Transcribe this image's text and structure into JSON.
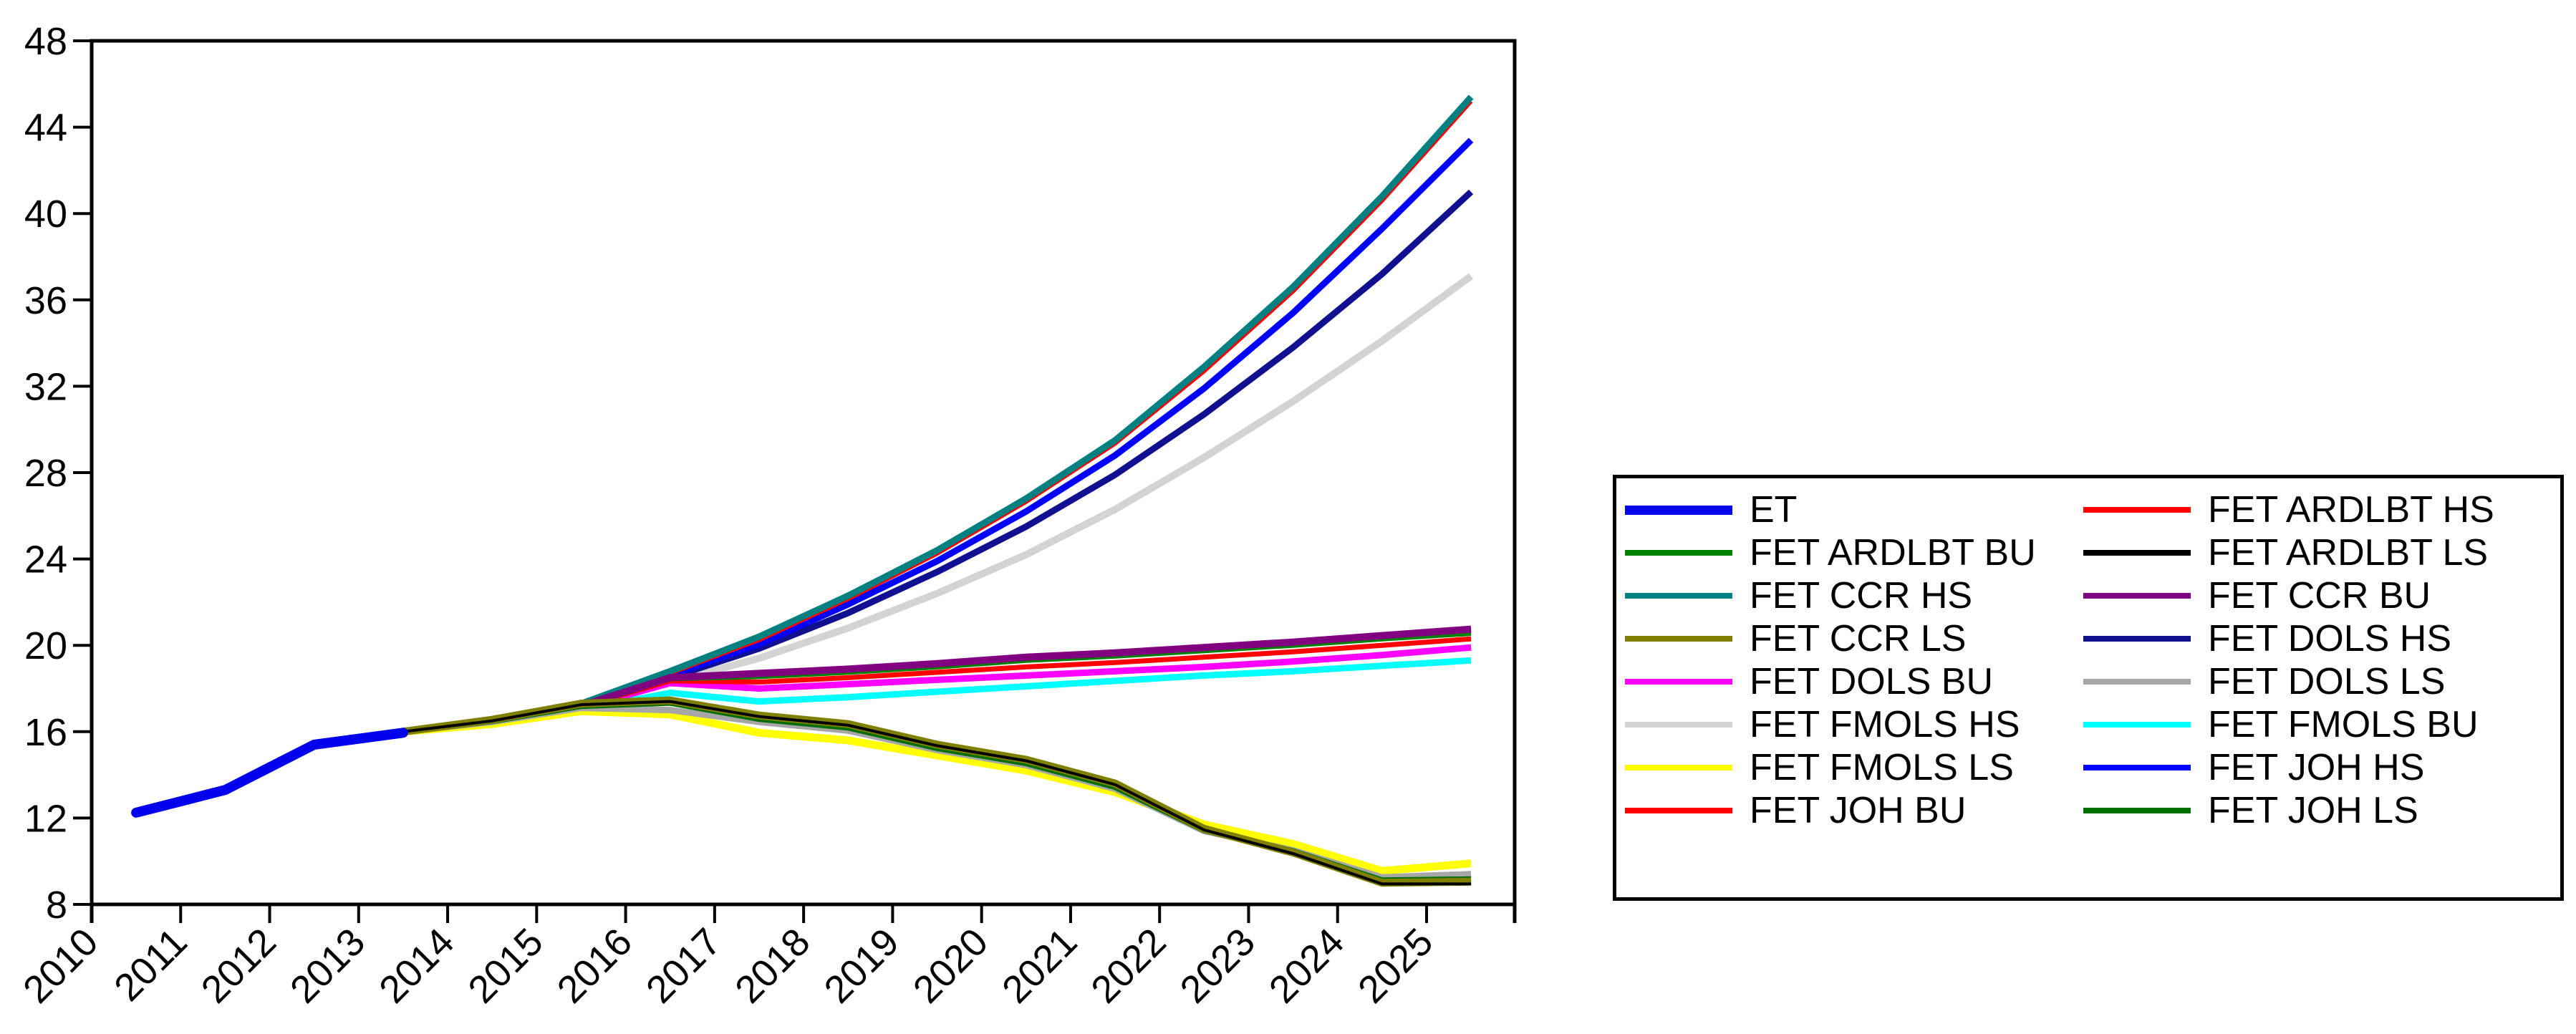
{
  "chart_data": {
    "type": "line",
    "title": "",
    "xlabel": "",
    "ylabel": "",
    "grid": false,
    "legend_position": "right-box",
    "x": [
      2010,
      2011,
      2012,
      2013,
      2014,
      2015,
      2016,
      2017,
      2018,
      2019,
      2020,
      2021,
      2022,
      2023,
      2024,
      2025
    ],
    "x_tick_labels": [
      "2010",
      "2011",
      "2012",
      "2013",
      "2014",
      "2015",
      "2016",
      "2017",
      "2018",
      "2019",
      "2020",
      "2021",
      "2022",
      "2023",
      "2024",
      "2025"
    ],
    "ylim": [
      8,
      48
    ],
    "y_ticks": [
      8,
      12,
      16,
      20,
      24,
      28,
      32,
      36,
      40,
      44,
      48
    ],
    "series": [
      {
        "name": "FET FMOLS HS",
        "color": "#D3D3D3",
        "width": 10,
        "values": [
          null,
          null,
          null,
          16.0,
          16.45,
          17.1,
          18.3,
          19.4,
          20.8,
          22.4,
          24.2,
          26.3,
          28.7,
          31.3,
          34.1,
          37.1
        ]
      },
      {
        "name": "FET DOLS HS",
        "color": "#101090",
        "width": 9,
        "values": [
          null,
          null,
          null,
          16.0,
          16.5,
          17.2,
          18.5,
          19.85,
          21.5,
          23.4,
          25.5,
          27.9,
          30.7,
          33.8,
          37.2,
          41.0
        ]
      },
      {
        "name": "FET JOH HS",
        "color": "#0000FF",
        "width": 9,
        "values": [
          null,
          null,
          null,
          16.0,
          16.5,
          17.2,
          18.6,
          20.05,
          21.9,
          23.9,
          26.2,
          28.8,
          31.9,
          35.4,
          39.3,
          43.4
        ]
      },
      {
        "name": "FET ARDLBT HS",
        "color": "#FF0000",
        "width": 6,
        "values": [
          null,
          null,
          null,
          16.0,
          16.5,
          17.25,
          18.7,
          20.25,
          22.15,
          24.25,
          26.65,
          29.35,
          32.7,
          36.4,
          40.6,
          45.2
        ]
      },
      {
        "name": "FET CCR HS",
        "color": "#008080",
        "width": 9,
        "values": [
          null,
          null,
          null,
          16.0,
          16.55,
          17.3,
          18.8,
          20.4,
          22.3,
          24.4,
          26.8,
          29.5,
          32.9,
          36.6,
          40.8,
          45.4
        ]
      },
      {
        "name": "FET FMOLS BU",
        "color": "#00FFFF",
        "width": 9,
        "values": [
          null,
          null,
          null,
          16.0,
          16.4,
          17.0,
          17.8,
          17.4,
          17.6,
          17.85,
          18.1,
          18.35,
          18.6,
          18.8,
          19.05,
          19.3
        ]
      },
      {
        "name": "FET DOLS BU",
        "color": "#FF00FF",
        "width": 9,
        "values": [
          null,
          null,
          null,
          16.0,
          16.45,
          17.1,
          18.25,
          18.0,
          18.2,
          18.4,
          18.6,
          18.8,
          19.0,
          19.25,
          19.55,
          19.9
        ]
      },
      {
        "name": "FET JOH BU",
        "color": "#FF0000",
        "width": 7,
        "values": [
          null,
          null,
          null,
          16.0,
          16.5,
          17.15,
          18.35,
          18.3,
          18.5,
          18.75,
          19.0,
          19.2,
          19.45,
          19.7,
          20.0,
          20.3
        ]
      },
      {
        "name": "FET ARDLBT BU",
        "color": "#008000",
        "width": 7,
        "values": [
          null,
          null,
          null,
          16.0,
          16.5,
          17.2,
          18.45,
          18.55,
          18.75,
          19.0,
          19.3,
          19.5,
          19.75,
          20.0,
          20.3,
          20.55
        ]
      },
      {
        "name": "FET CCR BU",
        "color": "#800080",
        "width": 10,
        "values": [
          null,
          null,
          null,
          16.0,
          16.5,
          17.2,
          18.5,
          18.7,
          18.9,
          19.15,
          19.45,
          19.65,
          19.9,
          20.15,
          20.45,
          20.75
        ]
      },
      {
        "name": "FET FMOLS LS",
        "color": "#FFFF00",
        "width": 11,
        "values": [
          null,
          null,
          null,
          16.0,
          16.35,
          16.95,
          16.8,
          15.95,
          15.6,
          14.9,
          14.2,
          13.2,
          11.7,
          10.8,
          9.55,
          9.9
        ]
      },
      {
        "name": "FET DOLS LS",
        "color": "#A6A6A6",
        "width": 9,
        "values": [
          null,
          null,
          null,
          16.0,
          16.45,
          17.1,
          17.0,
          16.45,
          16.05,
          15.15,
          14.45,
          13.35,
          11.4,
          10.5,
          9.25,
          9.4
        ]
      },
      {
        "name": "FET JOH LS",
        "color": "#006E00",
        "width": 9,
        "values": [
          null,
          null,
          null,
          16.0,
          16.5,
          17.2,
          17.35,
          16.6,
          16.2,
          15.25,
          14.55,
          13.45,
          11.45,
          10.45,
          9.1,
          9.15
        ]
      },
      {
        "name": "FET CCR LS",
        "color": "#808000",
        "width": 11,
        "values": [
          null,
          null,
          null,
          16.0,
          16.55,
          17.3,
          17.45,
          16.75,
          16.35,
          15.4,
          14.7,
          13.6,
          11.5,
          10.4,
          9.0,
          9.05
        ]
      },
      {
        "name": "FET ARDLBT LS",
        "color": "#000000",
        "width": 4,
        "values": [
          null,
          null,
          null,
          16.0,
          16.5,
          17.25,
          17.4,
          16.7,
          16.3,
          15.35,
          14.65,
          13.55,
          11.45,
          10.35,
          8.95,
          8.95
        ]
      },
      {
        "name": "ET",
        "color": "#0000EE",
        "width": 14,
        "round_cap": true,
        "values": [
          12.25,
          13.3,
          15.4,
          15.95,
          null,
          null,
          null,
          null,
          null,
          null,
          null,
          null,
          null,
          null,
          null,
          null
        ]
      }
    ],
    "legend_columns": [
      [
        {
          "label": "ET",
          "color": "#0000EE",
          "thick": 13
        },
        {
          "label": "FET ARDLBT BU",
          "color": "#008000",
          "thick": 8
        },
        {
          "label": "FET CCR HS",
          "color": "#008080",
          "thick": 8
        },
        {
          "label": "FET CCR LS",
          "color": "#808000",
          "thick": 8
        },
        {
          "label": "FET DOLS BU",
          "color": "#FF00FF",
          "thick": 8
        },
        {
          "label": "FET FMOLS HS",
          "color": "#D3D3D3",
          "thick": 8
        },
        {
          "label": "FET FMOLS LS",
          "color": "#FFFF00",
          "thick": 8
        },
        {
          "label": "FET JOH BU",
          "color": "#FF0000",
          "thick": 8
        }
      ],
      [
        {
          "label": "FET ARDLBT HS",
          "color": "#FF0000",
          "thick": 8
        },
        {
          "label": "FET ARDLBT LS",
          "color": "#000000",
          "thick": 8
        },
        {
          "label": "FET CCR BU",
          "color": "#800080",
          "thick": 8
        },
        {
          "label": "FET DOLS HS",
          "color": "#101090",
          "thick": 8
        },
        {
          "label": "FET DOLS LS",
          "color": "#A6A6A6",
          "thick": 8
        },
        {
          "label": "FET FMOLS BU",
          "color": "#00FFFF",
          "thick": 8
        },
        {
          "label": "FET JOH HS",
          "color": "#0000FF",
          "thick": 8
        },
        {
          "label": "FET JOH LS",
          "color": "#006E00",
          "thick": 8
        }
      ]
    ]
  }
}
